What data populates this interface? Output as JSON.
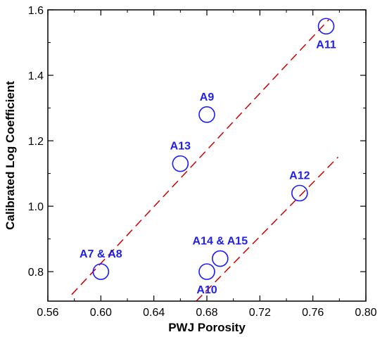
{
  "chart_data": {
    "type": "scatter",
    "title": "",
    "xlabel": "PWJ Porosity",
    "ylabel": "Calibrated Log Coefficient",
    "xlim": [
      0.56,
      0.8
    ],
    "ylim": [
      0.71,
      1.6
    ],
    "xticks": [
      0.56,
      0.6,
      0.64,
      0.68,
      0.72,
      0.76,
      0.8
    ],
    "xtick_labels": [
      "0.56",
      "0.60",
      "0.64",
      "0.68",
      "0.72",
      "0.76",
      "0.80"
    ],
    "yticks": [
      0.8,
      1.0,
      1.2,
      1.4,
      1.6
    ],
    "ytick_labels": [
      "0.8",
      "1.0",
      "1.2",
      "1.4",
      "1.6"
    ],
    "grid": false,
    "legend": "none",
    "marker": "open-circle",
    "marker_color": "#1a1aff",
    "label_color": "#2020e8",
    "trend_color": "#cc0000",
    "points": [
      {
        "label": "A7 & A8",
        "x": 0.6,
        "y": 0.8,
        "label_pos": "above"
      },
      {
        "label": "A13",
        "x": 0.66,
        "y": 1.13,
        "label_pos": "above"
      },
      {
        "label": "A9",
        "x": 0.68,
        "y": 1.28,
        "label_pos": "above"
      },
      {
        "label": "A11",
        "x": 0.77,
        "y": 1.55,
        "label_pos": "below"
      },
      {
        "label": "A12",
        "x": 0.75,
        "y": 1.04,
        "label_pos": "above"
      },
      {
        "label": "A14 & A15",
        "x": 0.69,
        "y": 0.84,
        "label_pos": "above"
      },
      {
        "label": "A10",
        "x": 0.68,
        "y": 0.8,
        "label_pos": "below"
      }
    ],
    "trend_lines": [
      {
        "x": [
          0.578,
          0.772
        ],
        "y": [
          0.73,
          1.57
        ]
      },
      {
        "x": [
          0.672,
          0.779
        ],
        "y": [
          0.71,
          1.15
        ]
      }
    ]
  }
}
